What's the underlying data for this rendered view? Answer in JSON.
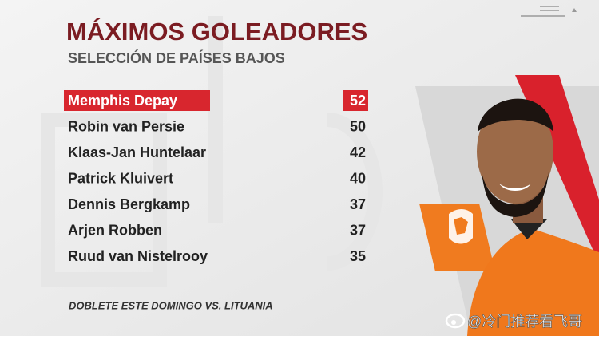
{
  "header": {
    "title": "MÁXIMOS GOLEADORES",
    "subtitle": "SELECCIÓN DE PAÍSES BAJOS"
  },
  "table": {
    "rows": [
      [
        "Memphis Depay",
        52
      ],
      [
        "Robin van Persie",
        50
      ],
      [
        "Klaas-Jan Huntelaar",
        42
      ],
      [
        "Patrick Kluivert",
        40
      ],
      [
        "Dennis Bergkamp",
        37
      ],
      [
        "Arjen Robben",
        37
      ],
      [
        "Ruud van Nistelrooy",
        35
      ]
    ]
  },
  "footer": {
    "note": "DOBLETE ESTE DOMINGO VS. LITUANIA"
  },
  "watermark": {
    "text": "@冷门推荐看飞哥"
  }
}
